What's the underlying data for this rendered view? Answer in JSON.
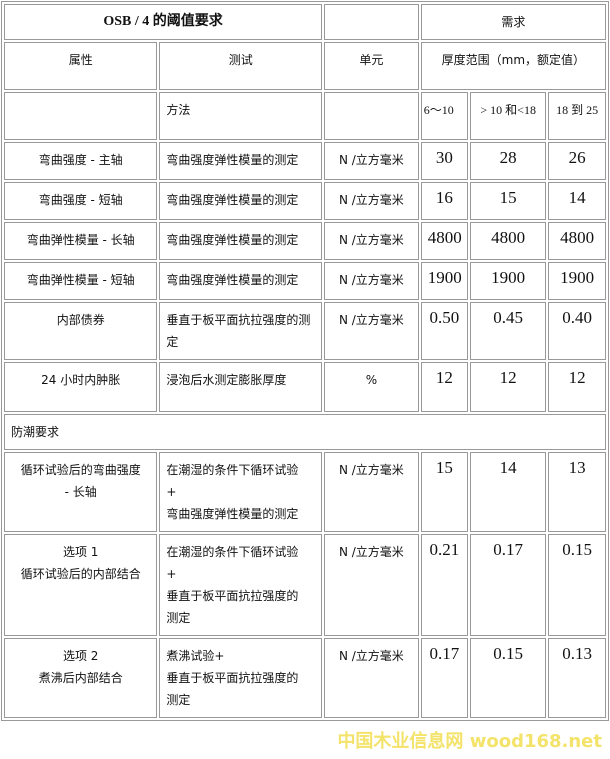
{
  "title": "OSB / 4 的阈值要求",
  "demand_header": "需求",
  "headers": {
    "property": "属性",
    "test": "测试",
    "unit": "单元",
    "thickness": "厚度范围（mm，额定值）",
    "method": "方法"
  },
  "ranges": [
    "6～10",
    "> 10 和<18",
    "18 到 25"
  ],
  "rows": [
    {
      "property": "弯曲强度 - 主轴",
      "test": "弯曲强度弹性模量的测定",
      "unit": "N /立方毫米",
      "v": [
        "30",
        "28",
        "26"
      ]
    },
    {
      "property": "弯曲强度 - 短轴",
      "test": "弯曲强度弹性模量的测定",
      "unit": "N /立方毫米",
      "v": [
        "16",
        "15",
        "14"
      ]
    },
    {
      "property": "弯曲弹性模量 - 长轴",
      "test": "弯曲强度弹性模量的测定",
      "unit": "N /立方毫米",
      "v": [
        "4800",
        "4800",
        "4800"
      ]
    },
    {
      "property": "弯曲弹性模量 - 短轴",
      "test": "弯曲强度弹性模量的测定",
      "unit": "N /立方毫米",
      "v": [
        "1900",
        "1900",
        "1900"
      ]
    },
    {
      "property": "内部债券",
      "test": "垂直于板平面抗拉强度的测定",
      "unit": "N /立方毫米",
      "v": [
        "0.50",
        "0.45",
        "0.40"
      ]
    },
    {
      "property": "24 小时内肿胀",
      "test": "浸泡后水测定膨胀厚度",
      "unit": "%",
      "v": [
        "12",
        "12",
        "12"
      ]
    }
  ],
  "moisture_section": "防潮要求",
  "moisture_rows": [
    {
      "property": [
        "循环试验后的弯曲强度",
        "- 长轴"
      ],
      "test": [
        "在潮湿的条件下循环试验",
        "+",
        "弯曲强度弹性模量的测定"
      ],
      "unit": "N /立方毫米",
      "v": [
        "15",
        "14",
        "13"
      ]
    },
    {
      "property": [
        "选项 1",
        "循环试验后的内部结合"
      ],
      "test": [
        "在潮湿的条件下循环试验",
        "+",
        "垂直于板平面抗拉强度的",
        "测定"
      ],
      "unit": "N /立方毫米",
      "v": [
        "0.21",
        "0.17",
        "0.15"
      ]
    },
    {
      "property": [
        "选项 2",
        "煮沸后内部结合"
      ],
      "test": [
        "煮沸试验+",
        "垂直于板平面抗拉强度的",
        "测定"
      ],
      "unit": "N /立方毫米",
      "v": [
        "0.17",
        "0.15",
        "0.13"
      ]
    }
  ],
  "watermark": "中国木业信息网 wood168.net"
}
